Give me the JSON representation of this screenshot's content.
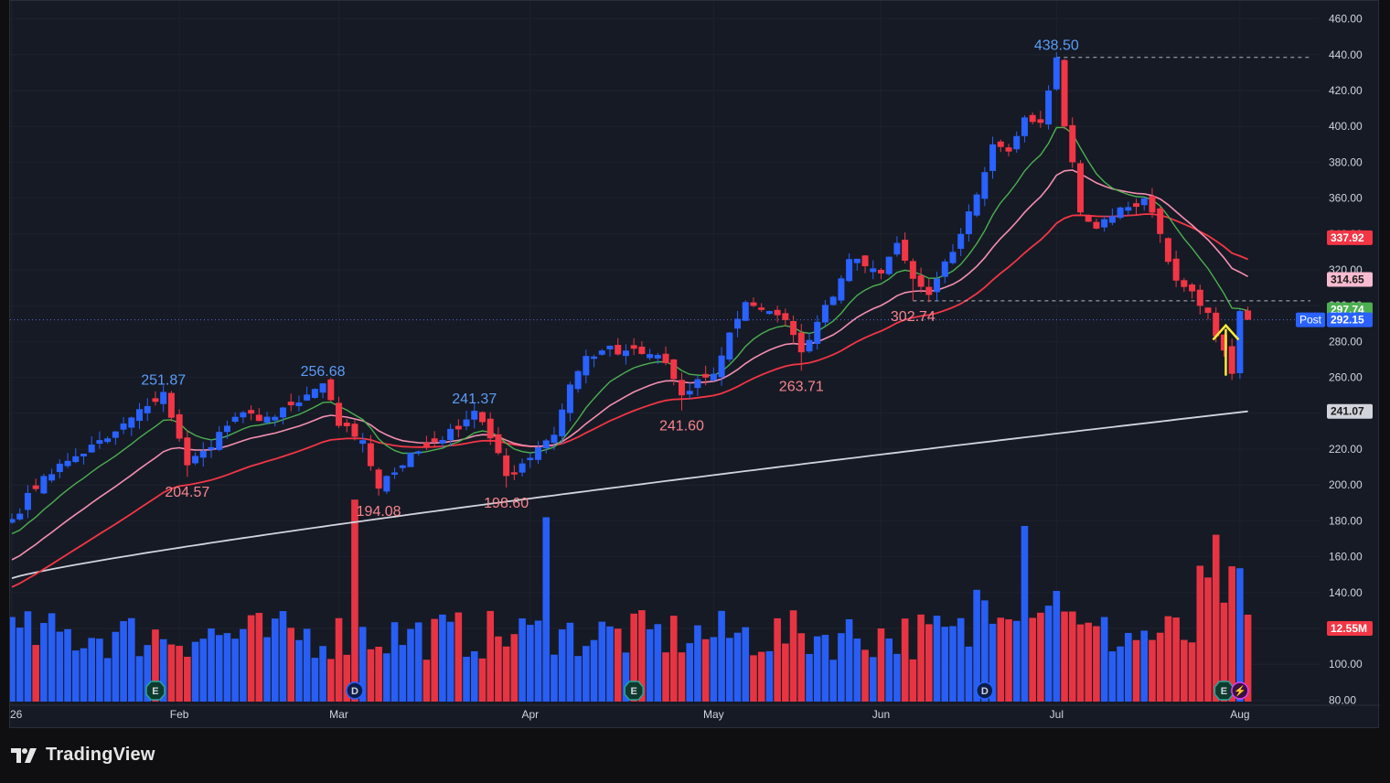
{
  "brand": {
    "name": "TradingView"
  },
  "colors": {
    "background": "#161a25",
    "up": "#2962ff",
    "down": "#f23645",
    "ema_fast": "#4caf50",
    "ema_mid": "#f48fb1",
    "sma_mid": "#f23645",
    "sma_long": "#d1d4dc",
    "arrow": "#ffeb3b"
  },
  "chart_data": {
    "type": "candlestick",
    "price_axis": {
      "range": [
        70,
        470
      ],
      "ticks": [
        80,
        100,
        120,
        140,
        160,
        180,
        200,
        220,
        240,
        260,
        280,
        300,
        320,
        340,
        360,
        380,
        400,
        420,
        440,
        460
      ],
      "tick_labels": [
        "80.00",
        "100.00",
        "120.00",
        "140.00",
        "160.00",
        "180.00",
        "200.00",
        "220.00",
        "240.00",
        "260.00",
        "280.00",
        "300.00",
        "320.00",
        "340.00",
        "360.00",
        "380.00",
        "400.00",
        "420.00",
        "440.00",
        "460.00"
      ]
    },
    "time_axis": {
      "labels": [
        {
          "text": "26",
          "index": 0
        },
        {
          "text": "Feb",
          "index": 21
        },
        {
          "text": "Mar",
          "index": 41
        },
        {
          "text": "Apr",
          "index": 65
        },
        {
          "text": "May",
          "index": 88
        },
        {
          "text": "Jun",
          "index": 109
        },
        {
          "text": "Jul",
          "index": 131
        },
        {
          "text": "Aug",
          "index": 154
        }
      ]
    },
    "anchors": [
      [
        0,
        181
      ],
      [
        4,
        205
      ],
      [
        8,
        216
      ],
      [
        12,
        226
      ],
      [
        17,
        244
      ],
      [
        19,
        251.87
      ],
      [
        22,
        211
      ],
      [
        24,
        219
      ],
      [
        28,
        238
      ],
      [
        33,
        238
      ],
      [
        36,
        246
      ],
      [
        39,
        256.68
      ],
      [
        41,
        233
      ],
      [
        44,
        225
      ],
      [
        46,
        198
      ],
      [
        50,
        218
      ],
      [
        53,
        224
      ],
      [
        56,
        231
      ],
      [
        58,
        241.37
      ],
      [
        60,
        226
      ],
      [
        62,
        205
      ],
      [
        64,
        212
      ],
      [
        66,
        221
      ],
      [
        68,
        228
      ],
      [
        70,
        256
      ],
      [
        72,
        272
      ],
      [
        74,
        275
      ],
      [
        78,
        276
      ],
      [
        82,
        268
      ],
      [
        84,
        250
      ],
      [
        86,
        259
      ],
      [
        88,
        262
      ],
      [
        90,
        285
      ],
      [
        92,
        302
      ],
      [
        95,
        297
      ],
      [
        97,
        292
      ],
      [
        99,
        274
      ],
      [
        101,
        291
      ],
      [
        103,
        305
      ],
      [
        105,
        326
      ],
      [
        107,
        322
      ],
      [
        109,
        318
      ],
      [
        111,
        335
      ],
      [
        113,
        315
      ],
      [
        115,
        306
      ],
      [
        118,
        330
      ],
      [
        121,
        362
      ],
      [
        123,
        390
      ],
      [
        125,
        386
      ],
      [
        127,
        405
      ],
      [
        129,
        402
      ],
      [
        130,
        420
      ],
      [
        131,
        438.5
      ],
      [
        132,
        400
      ],
      [
        133,
        380
      ],
      [
        134,
        352
      ],
      [
        136,
        343
      ],
      [
        138,
        350
      ],
      [
        140,
        355
      ],
      [
        142,
        360
      ],
      [
        144,
        340
      ],
      [
        146,
        314
      ],
      [
        148,
        308
      ],
      [
        150,
        296
      ],
      [
        152,
        275
      ],
      [
        153,
        262
      ],
      [
        154,
        297
      ],
      [
        155,
        292.15
      ]
    ],
    "candles_hint": "OHLC candles derived from the daily close anchors above",
    "annotations": [
      {
        "text": "251.87",
        "index": 19,
        "price": 251.87,
        "side": "high"
      },
      {
        "text": "256.68",
        "index": 39,
        "price": 256.68,
        "side": "high"
      },
      {
        "text": "241.37",
        "index": 58,
        "price": 241.37,
        "side": "high"
      },
      {
        "text": "204.57",
        "index": 22,
        "price": 204.57,
        "side": "low"
      },
      {
        "text": "194.08",
        "index": 46,
        "price": 194.08,
        "side": "low"
      },
      {
        "text": "198.60",
        "index": 62,
        "price": 198.6,
        "side": "low"
      },
      {
        "text": "241.60",
        "index": 84,
        "price": 241.6,
        "side": "low"
      },
      {
        "text": "263.71",
        "index": 99,
        "price": 263.71,
        "side": "low"
      },
      {
        "text": "302.74",
        "index": 113,
        "price": 302.74,
        "side": "low"
      },
      {
        "text": "438.50",
        "index": 131,
        "price": 438.5,
        "side": "high"
      }
    ],
    "price_labels": [
      {
        "text": "337.92",
        "price": 337.92,
        "bg": "#f23645",
        "color": "#ffffff"
      },
      {
        "text": "314.65",
        "price": 314.65,
        "bg": "#f8bbd0",
        "color": "#1a1a1a"
      },
      {
        "text": "297.74",
        "price": 297.74,
        "bg": "#4caf50",
        "color": "#ffffff"
      },
      {
        "text": "292.15",
        "price": 292.15,
        "bg": "#2962ff",
        "color": "#ffffff"
      },
      {
        "text": "241.07",
        "price": 241.07,
        "bg": "#d1d4dc",
        "color": "#1a1a1a"
      },
      {
        "text": "12.55M",
        "price": 120,
        "bg": "#f23645",
        "color": "#ffffff"
      }
    ],
    "post_label": "Post",
    "moving_averages": [
      {
        "kind": "ema_fast",
        "period": 10,
        "last": 297.74
      },
      {
        "kind": "ema_mid",
        "period": 21,
        "last": 314.65
      },
      {
        "kind": "sma_mid",
        "period": 50,
        "last": 337.92
      },
      {
        "kind": "sma_long",
        "period": 200,
        "last": 241.07
      }
    ],
    "volume": {
      "last_label": "12.55M",
      "big_bars": [
        [
          43,
          2.3
        ],
        [
          67,
          2.1
        ],
        [
          127,
          2.0
        ],
        [
          151,
          1.9
        ]
      ]
    },
    "events": [
      {
        "type": "E",
        "index": 18
      },
      {
        "type": "D",
        "index": 43
      },
      {
        "type": "E",
        "index": 78
      },
      {
        "type": "D",
        "index": 122
      },
      {
        "type": "E",
        "index": 152
      },
      {
        "type": "flash",
        "index": 154
      }
    ],
    "dashed_levels": [
      {
        "price": 438.5,
        "from_index": 131
      },
      {
        "price": 302.74,
        "from_index": 113
      }
    ]
  }
}
